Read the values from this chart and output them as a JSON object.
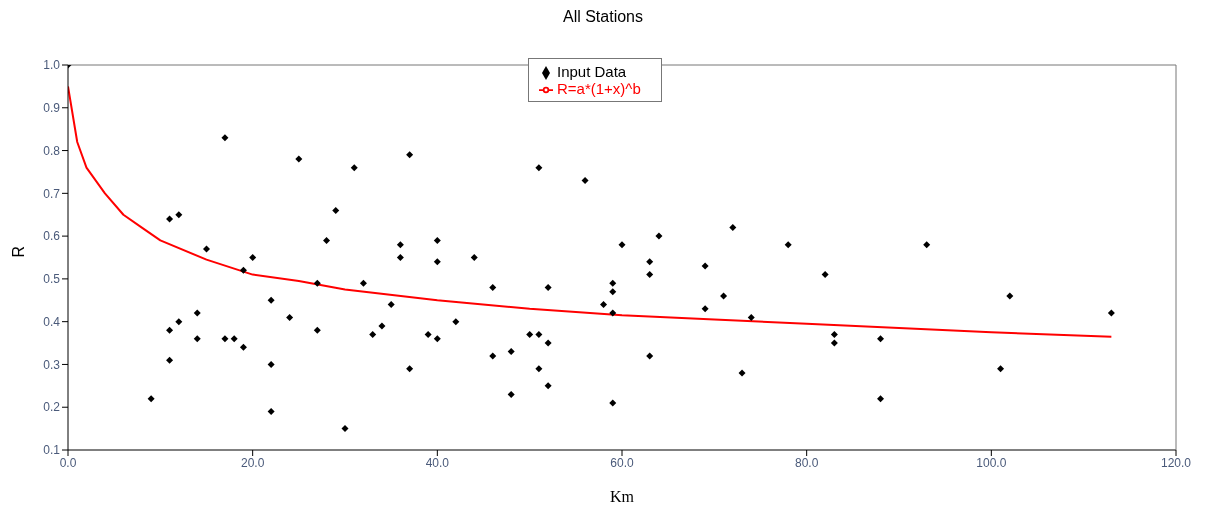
{
  "chart_data": {
    "type": "scatter",
    "title": "All Stations",
    "xlabel": "Km",
    "ylabel": "R",
    "xlim": [
      0,
      120
    ],
    "ylim": [
      0.1,
      1.0
    ],
    "xticks": [
      {
        "value": 0,
        "label": "0.0"
      },
      {
        "value": 20,
        "label": "20.0"
      },
      {
        "value": 40,
        "label": "40.0"
      },
      {
        "value": 60,
        "label": "60.0"
      },
      {
        "value": 80,
        "label": "80.0"
      },
      {
        "value": 100,
        "label": "100.0"
      },
      {
        "value": 120,
        "label": "120.0"
      }
    ],
    "yticks": [
      0.1,
      0.2,
      0.3,
      0.4,
      0.5,
      0.6,
      0.7,
      0.8,
      0.9,
      {
        "value": 1.0,
        "label": "1.0"
      }
    ],
    "grid": false,
    "legend": "top",
    "marker": "diamond",
    "series": [
      {
        "name": "Input Data",
        "color": "#000000",
        "x": [
          0,
          9,
          11,
          11,
          11,
          12,
          12,
          14,
          14,
          15,
          17,
          17,
          18,
          19,
          19,
          20,
          22,
          22,
          22,
          24,
          25,
          27,
          27,
          28,
          29,
          30,
          31,
          32,
          33,
          34,
          35,
          36,
          36,
          37,
          37,
          39,
          40,
          40,
          40,
          42,
          44,
          46,
          46,
          48,
          48,
          50,
          51,
          51,
          51,
          52,
          52,
          52,
          56,
          58,
          59,
          59,
          59,
          59,
          60,
          63,
          63,
          63,
          64,
          69,
          69,
          71,
          72,
          73,
          74,
          78,
          82,
          83,
          83,
          88,
          88,
          93,
          101,
          102,
          113
        ],
        "values": [
          1.0,
          0.22,
          0.38,
          0.31,
          0.64,
          0.65,
          0.4,
          0.36,
          0.42,
          0.57,
          0.83,
          0.36,
          0.36,
          0.34,
          0.52,
          0.55,
          0.45,
          0.3,
          0.19,
          0.41,
          0.78,
          0.49,
          0.38,
          0.59,
          0.66,
          0.15,
          0.76,
          0.49,
          0.37,
          0.39,
          0.44,
          0.58,
          0.55,
          0.79,
          0.29,
          0.37,
          0.59,
          0.54,
          0.36,
          0.4,
          0.55,
          0.48,
          0.32,
          0.33,
          0.23,
          0.37,
          0.76,
          0.37,
          0.29,
          0.48,
          0.35,
          0.25,
          0.73,
          0.44,
          0.49,
          0.47,
          0.42,
          0.21,
          0.58,
          0.54,
          0.51,
          0.32,
          0.6,
          0.53,
          0.43,
          0.46,
          0.62,
          0.28,
          0.41,
          0.58,
          0.51,
          0.37,
          0.35,
          0.36,
          0.22,
          0.58,
          0.29,
          0.46,
          0.42
        ]
      },
      {
        "name": "R=a*(1+x)^b",
        "type": "line",
        "color": "#ff0000",
        "marker": "none",
        "x": [
          0,
          1,
          2,
          4,
          6,
          8,
          10,
          15,
          20,
          25,
          30,
          40,
          50,
          60,
          70,
          80,
          90,
          100,
          113
        ],
        "values": [
          0.95,
          0.82,
          0.76,
          0.7,
          0.65,
          0.62,
          0.59,
          0.545,
          0.51,
          0.495,
          0.475,
          0.45,
          0.43,
          0.415,
          0.405,
          0.395,
          0.385,
          0.375,
          0.365
        ]
      }
    ]
  }
}
